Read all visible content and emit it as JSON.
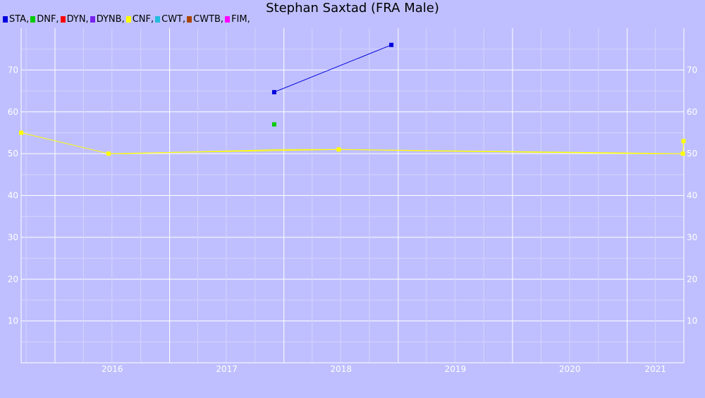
{
  "chart_data": {
    "type": "line",
    "title": "Stephan Saxtad (FRA Male)",
    "xlabel": "",
    "ylabel": "",
    "x_range": [
      "2015-09-15",
      "2021-07-01"
    ],
    "ylim": [
      0,
      80
    ],
    "y_ticks": [
      10,
      20,
      30,
      40,
      50,
      60,
      70
    ],
    "x_ticks": [
      "2016",
      "2017",
      "2018",
      "2019",
      "2020",
      "2021"
    ],
    "grid": true,
    "legend_position": "top-left",
    "legend": [
      {
        "label": "STA,",
        "color": "#0000dd"
      },
      {
        "label": "DNF,",
        "color": "#00cc00"
      },
      {
        "label": "DYN,",
        "color": "#ff0000"
      },
      {
        "label": "DYNB,",
        "color": "#7722ee"
      },
      {
        "label": "CNF,",
        "color": "#ffff00"
      },
      {
        "label": "CWT,",
        "color": "#22bbdd"
      },
      {
        "label": "CWTB,",
        "color": "#aa4400"
      },
      {
        "label": "FIM,",
        "color": "#ff00ff"
      }
    ],
    "series": [
      {
        "discipline": "STA",
        "color": "#0000dd",
        "points": [
          {
            "x": "2017-12-01",
            "y": 64.7
          },
          {
            "x": "2018-12-10",
            "y": 76.0
          }
        ]
      },
      {
        "discipline": "DNF",
        "color": "#00cc00",
        "points": [
          {
            "x": "2017-12-01",
            "y": 57.0
          }
        ]
      },
      {
        "discipline": "CNF",
        "color": "#ffff00",
        "points": [
          {
            "x": "2015-09-15",
            "y": 55.0
          },
          {
            "x": "2016-06-20",
            "y": 50.0
          },
          {
            "x": "2018-06-25",
            "y": 51.0
          },
          {
            "x": "2021-06-28",
            "y": 50.0
          },
          {
            "x": "2021-06-30",
            "y": 53.0
          }
        ],
        "trend": [
          {
            "x": "2016-06-20",
            "y": 50.0
          },
          {
            "x": "2016-08-15",
            "y": 50.0
          },
          {
            "x": "2017-04-15",
            "y": 50.5
          },
          {
            "x": "2018-01-01",
            "y": 51.0
          },
          {
            "x": "2018-06-25",
            "y": 51.0
          },
          {
            "x": "2019-03-01",
            "y": 50.7
          },
          {
            "x": "2020-04-01",
            "y": 50.3
          },
          {
            "x": "2021-03-15",
            "y": 50.0
          },
          {
            "x": "2021-06-28",
            "y": 50.0
          }
        ]
      }
    ]
  }
}
